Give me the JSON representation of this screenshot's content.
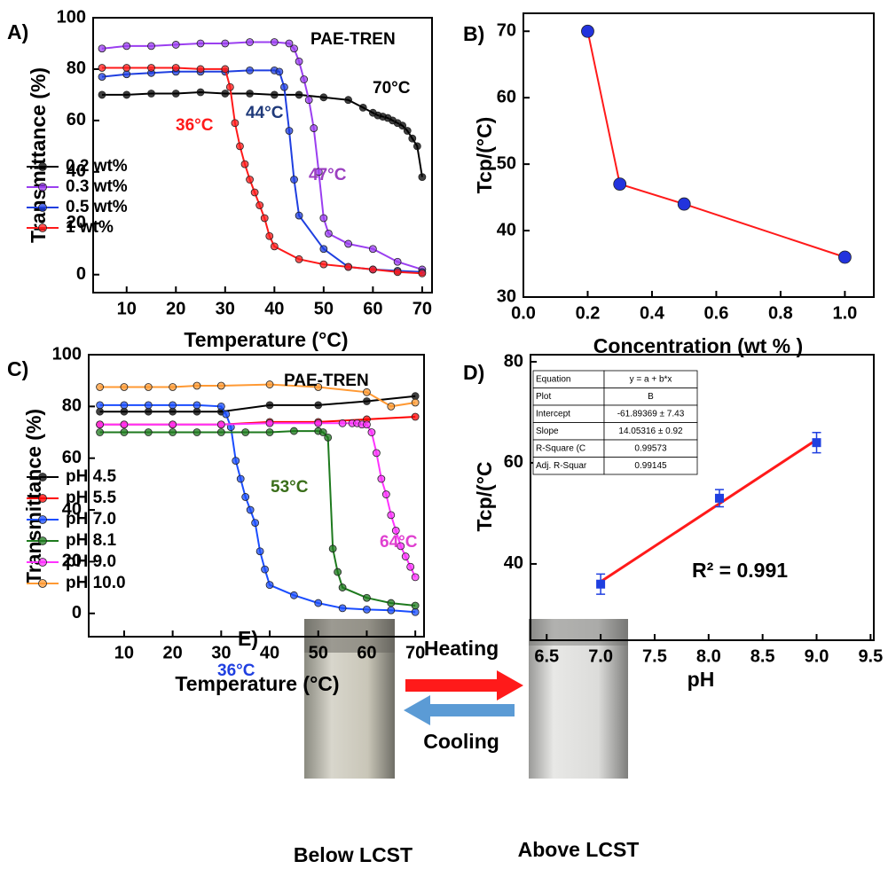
{
  "chart_data": [
    {
      "type": "line",
      "panel": "A)",
      "xlabel": "Temperature (°C)",
      "ylabel": "Transmittance (%)",
      "xlim": [
        3.2,
        72
      ],
      "xticks": [
        10,
        20,
        30,
        40,
        50,
        60,
        70
      ],
      "ylim": [
        -7,
        100
      ],
      "yticks": [
        0,
        20,
        40,
        60,
        80,
        100
      ],
      "grid": false,
      "series": [
        {
          "name": "0.2 wt%",
          "color": "#000000",
          "x": [
            5,
            10,
            15,
            20,
            25,
            30,
            35,
            40,
            45,
            50,
            55,
            58,
            60,
            61,
            62,
            63,
            64,
            65,
            66,
            67,
            68,
            69,
            70
          ],
          "values": [
            70,
            70,
            70.5,
            70.5,
            71,
            70.5,
            70.5,
            70,
            70,
            69,
            68,
            65,
            63,
            62,
            61.5,
            61,
            60,
            59,
            58,
            56,
            53,
            50,
            38
          ]
        },
        {
          "name": "0.3 wt%",
          "color": "#9b3ff0",
          "x": [
            5,
            10,
            15,
            20,
            25,
            30,
            35,
            40,
            43,
            44,
            45,
            46,
            47,
            48,
            49,
            50,
            51,
            55,
            60,
            65,
            70
          ],
          "values": [
            88,
            89,
            89,
            89.5,
            90,
            90,
            90.5,
            90.5,
            90,
            88,
            83,
            76,
            68,
            57,
            40,
            22,
            16,
            12,
            10,
            5,
            2
          ]
        },
        {
          "name": "0.5 wt%",
          "color": "#1f3fe0",
          "x": [
            5,
            10,
            15,
            20,
            25,
            30,
            35,
            40,
            41,
            42,
            43,
            44,
            45,
            50,
            55,
            60,
            65,
            70
          ],
          "values": [
            77,
            78,
            78.5,
            79,
            79,
            79,
            79.5,
            79.5,
            79,
            73,
            56,
            37,
            23,
            10,
            3,
            2,
            1.5,
            1
          ]
        },
        {
          "name": "1 wt%",
          "color": "#ff1a1a",
          "x": [
            5,
            10,
            15,
            20,
            25,
            30,
            31,
            32,
            33,
            34,
            35,
            36,
            37,
            38,
            39,
            40,
            45,
            50,
            55,
            60,
            65,
            70
          ],
          "values": [
            80.5,
            80.5,
            80.5,
            80.5,
            80,
            80,
            73,
            59,
            50,
            43,
            37,
            32,
            27,
            22,
            15,
            11,
            6,
            4,
            3,
            2,
            1,
            0.5
          ]
        }
      ],
      "annotations": [
        {
          "text": "PAE-TREN",
          "color": "#000000"
        },
        {
          "text": "70°C",
          "color": "#000000"
        },
        {
          "text": "36°C",
          "color": "#ff1a1a"
        },
        {
          "text": "44°C",
          "color": "#1f3a7a"
        },
        {
          "text": "47°C",
          "color": "#9b3fc0"
        }
      ]
    },
    {
      "type": "line",
      "panel": "B)",
      "xlabel": "Concentration (wt % )",
      "ylabel": "Tcp/(°C)",
      "xlim": [
        0,
        1.09
      ],
      "xticks": [
        {
          "value": 0,
          "label": "0.0"
        },
        0.2,
        0.4,
        0.6,
        0.8,
        {
          "value": 1,
          "label": "1.0"
        }
      ],
      "ylim": [
        30,
        72.7
      ],
      "yticks": [
        30,
        40,
        50,
        60,
        70
      ],
      "grid": false,
      "series": [
        {
          "color": "#ff1a1a",
          "marker_color": "#2233dd",
          "x": [
            0.2,
            0.3,
            0.5,
            1.0
          ],
          "values": [
            70,
            47,
            44,
            36
          ]
        }
      ],
      "annotations": []
    },
    {
      "type": "line",
      "panel": "C)",
      "xlabel": "Temperature (°C)",
      "ylabel": "Transmittance (%)",
      "xlim": [
        2.7,
        71.8
      ],
      "xticks": [
        10,
        20,
        30,
        40,
        50,
        60,
        70
      ],
      "ylim": [
        -9,
        100
      ],
      "yticks": [
        0,
        20,
        40,
        60,
        80,
        100
      ],
      "grid": false,
      "series": [
        {
          "name": "pH 4.5",
          "color": "#000000",
          "x": [
            5,
            10,
            15,
            20,
            25,
            30,
            40,
            50,
            60,
            70
          ],
          "values": [
            78,
            78,
            78,
            78,
            78,
            78,
            80.5,
            80.5,
            82,
            84
          ]
        },
        {
          "name": "pH 5.5",
          "color": "#ff0000",
          "x": [
            5,
            10,
            20,
            30,
            40,
            50,
            60,
            70
          ],
          "values": [
            73,
            73,
            73,
            73,
            74,
            74,
            75,
            76
          ]
        },
        {
          "name": "pH 7.0",
          "color": "#1a4dff",
          "x": [
            5,
            10,
            15,
            20,
            25,
            30,
            31,
            32,
            33,
            34,
            35,
            36,
            37,
            38,
            39,
            40,
            45,
            50,
            55,
            60,
            65,
            70
          ],
          "values": [
            80.5,
            80.5,
            80.5,
            80.5,
            80.5,
            80,
            77,
            72,
            59,
            52,
            45,
            40,
            35,
            24,
            17,
            11,
            7,
            4,
            2,
            1.5,
            1.2,
            0.5
          ]
        },
        {
          "name": "pH 8.1",
          "color": "#1e7a1e",
          "x": [
            5,
            10,
            15,
            20,
            25,
            30,
            35,
            40,
            45,
            50,
            51,
            52,
            53,
            54,
            55,
            60,
            65,
            70
          ],
          "values": [
            70,
            70,
            70,
            70,
            70,
            70,
            70,
            70,
            70.5,
            70.5,
            70,
            68,
            25,
            16,
            10,
            6,
            4,
            3
          ]
        },
        {
          "name": "pH 9.0",
          "color": "#ff33ff",
          "x": [
            5,
            10,
            20,
            30,
            40,
            50,
            55,
            57,
            58,
            59,
            60,
            61,
            62,
            63,
            64,
            65,
            66,
            67,
            68,
            69,
            70
          ],
          "values": [
            73,
            73,
            73,
            73,
            73.5,
            73.5,
            73.5,
            73.5,
            73.5,
            73,
            73,
            70,
            62,
            52,
            46,
            38,
            32,
            26,
            22,
            18,
            14
          ]
        },
        {
          "name": "pH 10.0",
          "color": "#ff9933",
          "x": [
            5,
            10,
            15,
            20,
            25,
            30,
            40,
            50,
            60,
            65,
            70
          ],
          "values": [
            87.5,
            87.5,
            87.5,
            87.5,
            88,
            88,
            88.5,
            87.5,
            85.5,
            80,
            81.5
          ]
        }
      ],
      "annotations": [
        {
          "text": "PAE-TREN",
          "color": "#000000"
        },
        {
          "text": "53°C",
          "color": "#3a6e1a"
        },
        {
          "text": "64°C",
          "color": "#e040d0"
        },
        {
          "text": "36°C",
          "color": "#1f3fe0"
        }
      ]
    },
    {
      "type": "scatter",
      "panel": "D)",
      "xlabel": "pH",
      "ylabel": "Tcp/(°C",
      "xlim": [
        6.35,
        9.53
      ],
      "xticks": [
        6.5,
        {
          "value": 7,
          "label": "7.0"
        },
        7.5,
        {
          "value": 8,
          "label": "8.0"
        },
        8.5,
        {
          "value": 9,
          "label": "9.0"
        },
        9.5
      ],
      "ylim": [
        24.9,
        81.4
      ],
      "yticks": [
        40,
        60,
        80
      ],
      "grid": false,
      "series": [
        {
          "color": "#1f3fe0",
          "x": [
            7.0,
            8.1,
            9.0
          ],
          "values": [
            36,
            53,
            64
          ],
          "errors": [
            2,
            1.7,
            2
          ]
        }
      ],
      "fit": {
        "color": "#ff1a1a",
        "x": [
          7.0,
          9.0
        ],
        "values": [
          36.48,
          64.58
        ]
      },
      "table": {
        "rows": [
          [
            "Equation",
            "y = a + b*x"
          ],
          [
            "Plot",
            "B"
          ],
          [
            "Intercept",
            "-61.89369 ± 7.43"
          ],
          [
            "Slope",
            "14.05316 ± 0.92"
          ],
          [
            "R-Square (C",
            "0.99573"
          ],
          [
            "Adj. R-Squar",
            "0.99145"
          ]
        ]
      },
      "annotations": [
        {
          "text": "R² = 0.991",
          "color": "#000000"
        }
      ]
    }
  ],
  "panel_e": {
    "label": "E)",
    "heating": "Heating",
    "cooling": "Cooling",
    "below": "Below LCST",
    "above": "Above LCST"
  }
}
